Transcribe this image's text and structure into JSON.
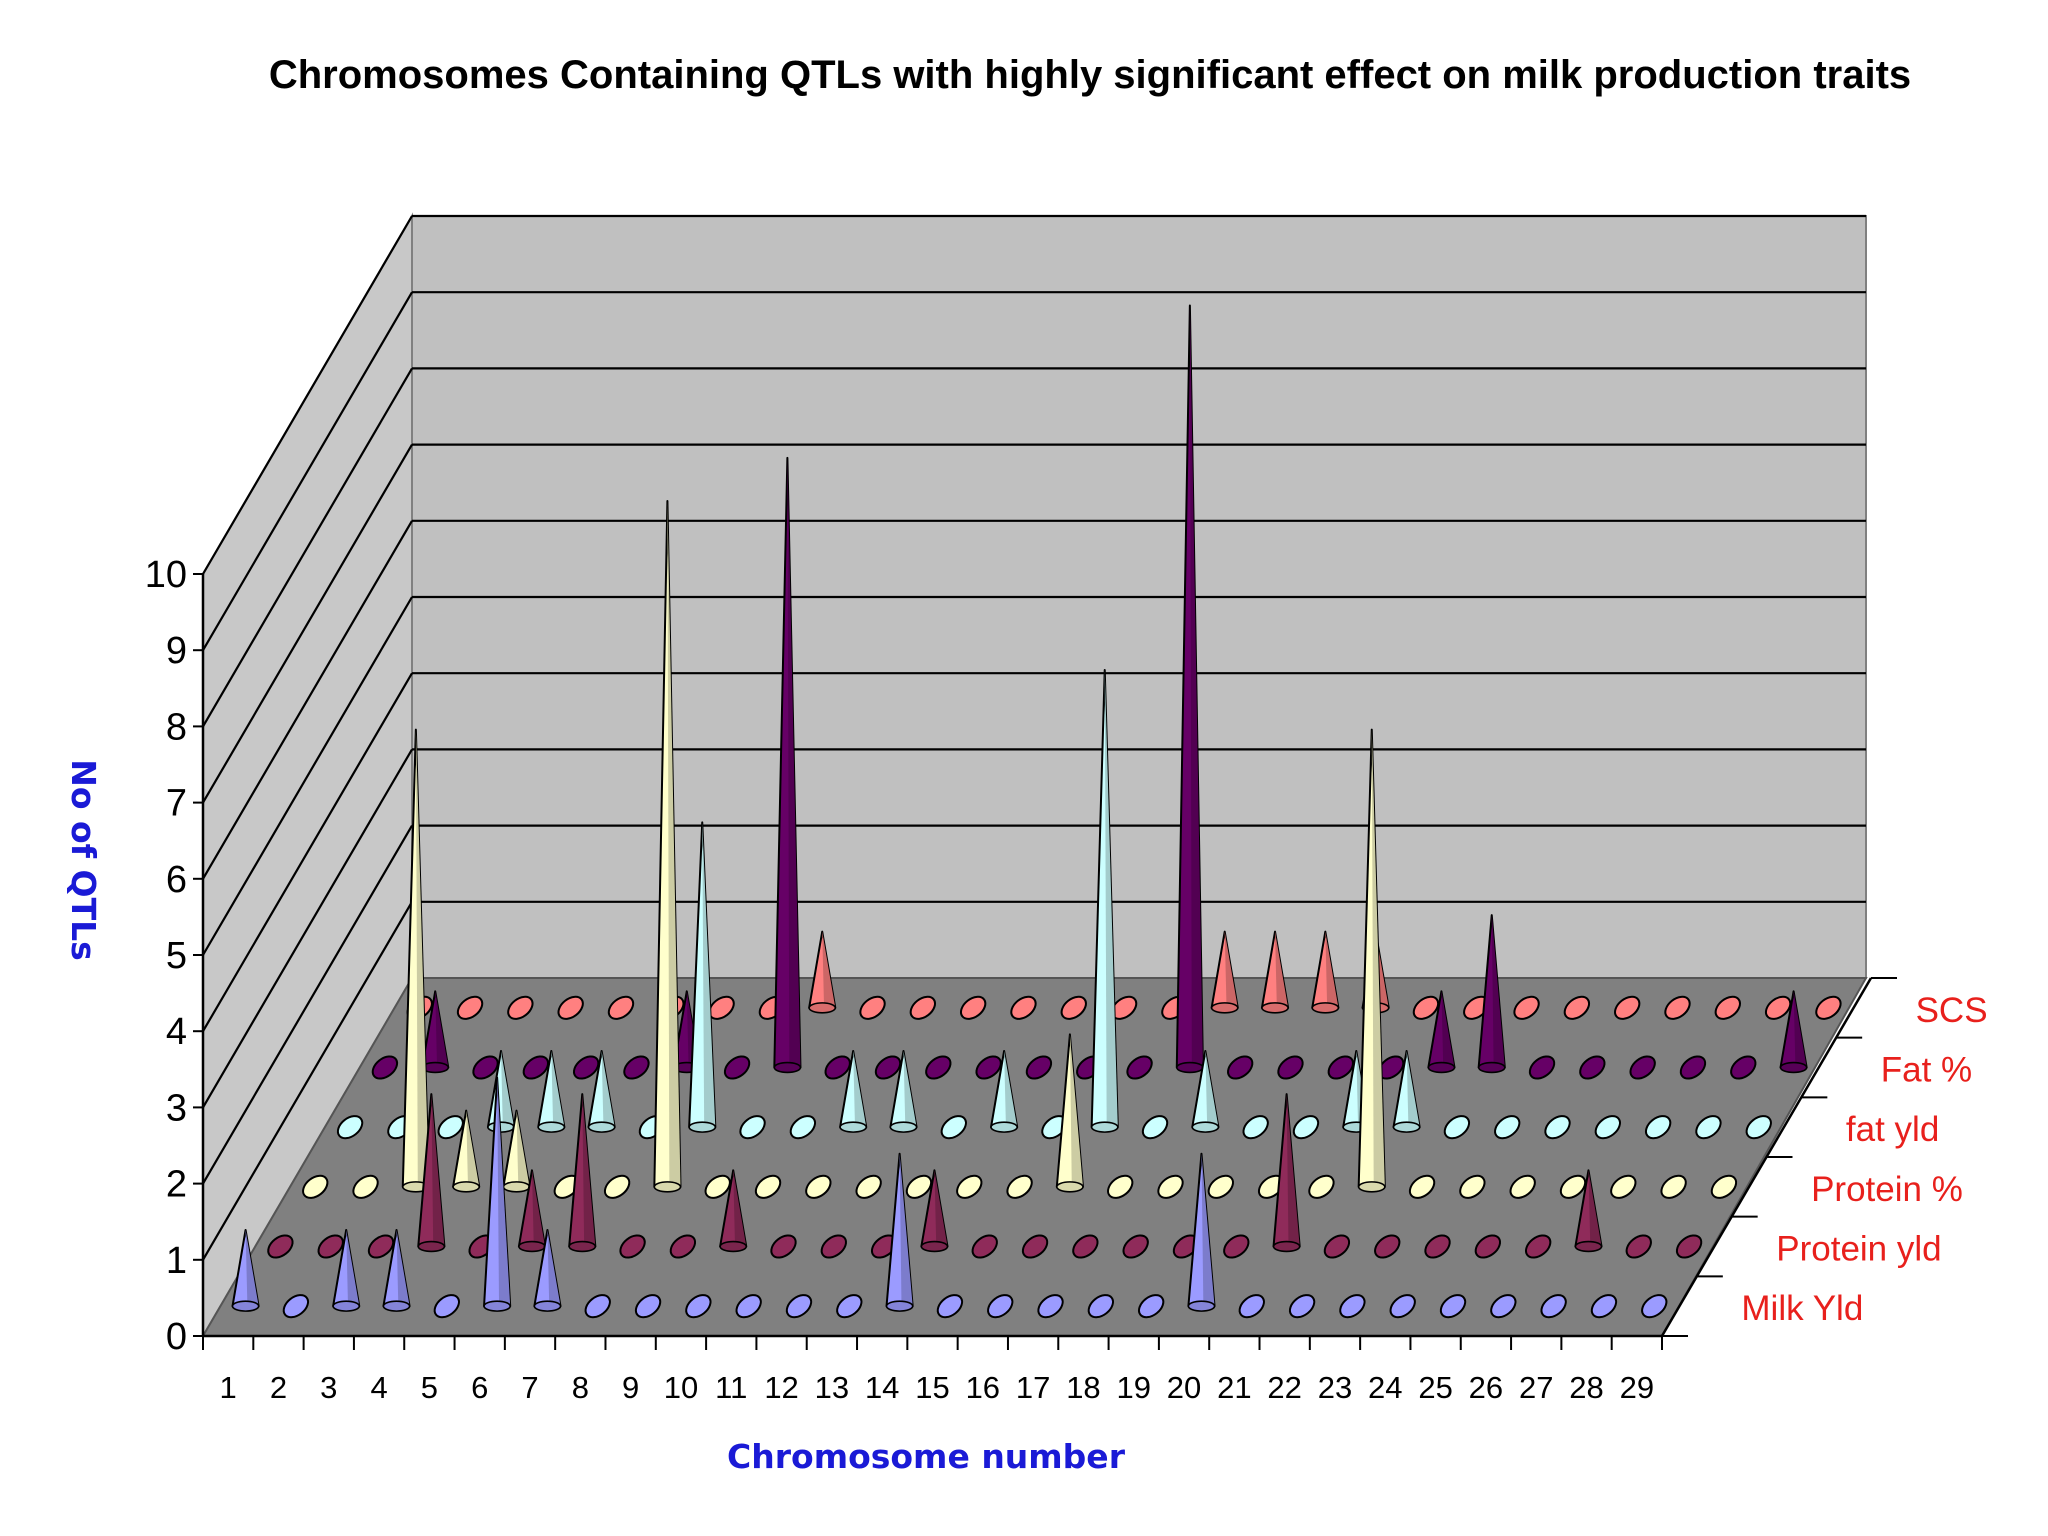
{
  "chart_data": {
    "type": "3d-cone",
    "title": "Chromosomes Containing  QTLs with highly significant effect on milk production traits",
    "xlabel": "Chromosome number",
    "ylabel": "No of QTLs",
    "ylim": [
      0,
      10
    ],
    "yticks": [
      "0",
      "1",
      "2",
      "3",
      "4",
      "5",
      "6",
      "7",
      "8",
      "9",
      "10"
    ],
    "categories": [
      "1",
      "2",
      "3",
      "4",
      "5",
      "6",
      "7",
      "8",
      "9",
      "10",
      "11",
      "12",
      "13",
      "14",
      "15",
      "16",
      "17",
      "18",
      "19",
      "20",
      "21",
      "22",
      "23",
      "24",
      "25",
      "26",
      "27",
      "28",
      "29"
    ],
    "grid": true,
    "series": [
      {
        "name": "Milk Yld",
        "color": "#9b9bff",
        "values": [
          1,
          0,
          1,
          1,
          0,
          3,
          1,
          0,
          0,
          0,
          0,
          0,
          0,
          2,
          0,
          0,
          0,
          0,
          0,
          2,
          0,
          0,
          0,
          0,
          0,
          0,
          0,
          0,
          0
        ]
      },
      {
        "name": "Protein yld",
        "color": "#8f2b5a",
        "values": [
          0,
          0,
          0,
          2,
          0,
          1,
          2,
          0,
          0,
          1,
          0,
          0,
          0,
          1,
          0,
          0,
          0,
          0,
          0,
          0,
          2,
          0,
          0,
          0,
          0,
          0,
          1,
          0,
          0
        ]
      },
      {
        "name": "Protein %",
        "color": "#ffffcc",
        "values": [
          0,
          0,
          6,
          1,
          1,
          0,
          0,
          9,
          0,
          0,
          0,
          0,
          0,
          0,
          0,
          2,
          0,
          0,
          0,
          0,
          0,
          6,
          0,
          0,
          0,
          0,
          0,
          0,
          0
        ]
      },
      {
        "name": "fat yld",
        "color": "#ccffff",
        "values": [
          0,
          0,
          0,
          1,
          1,
          1,
          0,
          4,
          0,
          0,
          1,
          1,
          0,
          1,
          0,
          6,
          0,
          1,
          0,
          0,
          1,
          1,
          0,
          0,
          0,
          0,
          0,
          0,
          0
        ]
      },
      {
        "name": "Fat %",
        "color": "#660066",
        "values": [
          0,
          1,
          0,
          0,
          0,
          0,
          1,
          0,
          8,
          0,
          0,
          0,
          0,
          0,
          0,
          0,
          10,
          0,
          0,
          0,
          0,
          1,
          2,
          0,
          0,
          0,
          0,
          0,
          1
        ]
      },
      {
        "name": "SCS",
        "color": "#ff8080",
        "values": [
          0,
          0,
          0,
          0,
          0,
          0,
          0,
          0,
          1,
          0,
          0,
          0,
          0,
          0,
          0,
          0,
          1,
          1,
          1,
          1,
          0,
          0,
          0,
          0,
          0,
          0,
          0,
          0,
          0
        ]
      }
    ]
  }
}
